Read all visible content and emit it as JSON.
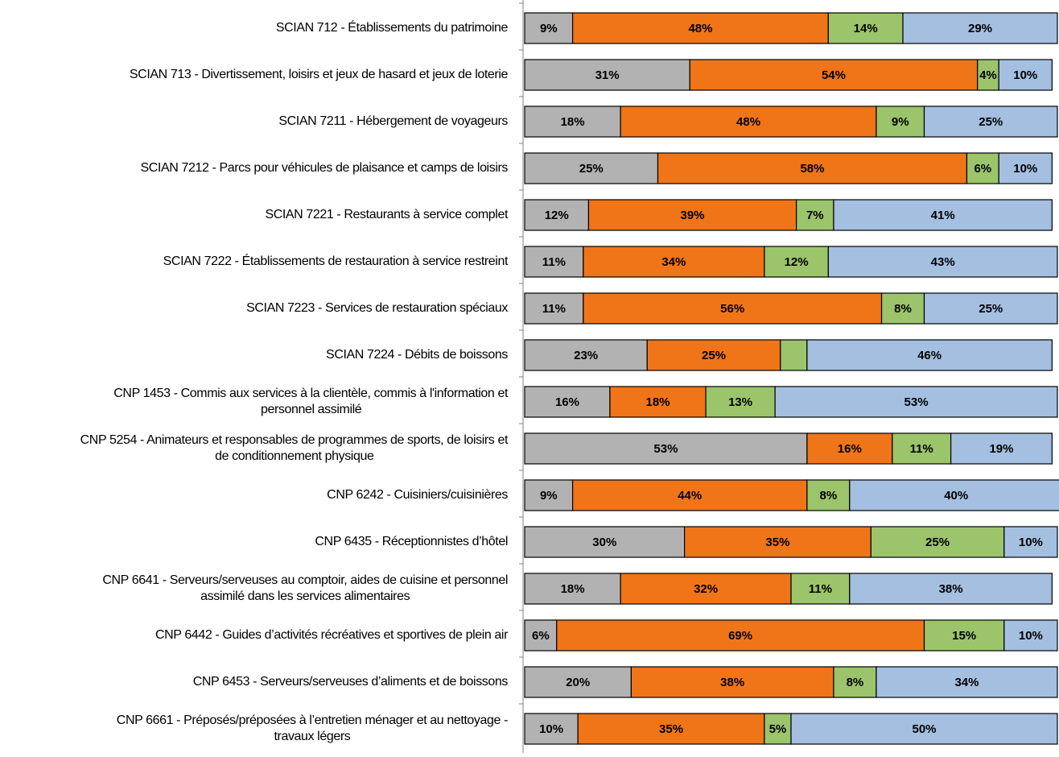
{
  "chart_data": {
    "type": "bar",
    "orientation": "horizontal",
    "stacked": true,
    "percent": true,
    "title": "",
    "xlabel": "",
    "ylabel": "",
    "xlim": [
      0,
      100
    ],
    "grid": false,
    "legend": "none",
    "categories": [
      [
        "SCIAN 712 - Établissements du patrimoine"
      ],
      [
        "SCIAN 713 - Divertissement, loisirs et jeux de hasard et jeux de loterie"
      ],
      [
        "SCIAN 7211 - Hébergement de voyageurs"
      ],
      [
        "SCIAN 7212 - Parcs pour véhicules de plaisance et camps de loisirs"
      ],
      [
        "SCIAN 7221 - Restaurants à service complet"
      ],
      [
        "SCIAN 7222 - Établissements de restauration à service restreint"
      ],
      [
        "SCIAN 7223  - Services de restauration spéciaux"
      ],
      [
        "SCIAN 7224 - Débits de boissons"
      ],
      [
        "CNP 1453 - Commis aux services à la clientèle, commis à l'information et",
        "personnel assimilé"
      ],
      [
        "CNP 5254 - Animateurs et responsables de programmes de sports, de loisirs et",
        "de conditionnement physique"
      ],
      [
        "CNP 6242 - Cuisiniers/cuisinières"
      ],
      [
        "CNP 6435 - Réceptionnistes d’hôtel"
      ],
      [
        "CNP 6641 - Serveurs/serveuses au comptoir, aides de cuisine et personnel",
        "assimilé dans les services alimentaires"
      ],
      [
        "CNP 6442 - Guides d’activités récréatives et sportives de plein air"
      ],
      [
        "CNP 6453 - Serveurs/serveuses d’aliments et de boissons"
      ],
      [
        "CNP 6661 - Préposés/préposées à l’entretien ménager et au nettoyage -",
        "travaux légers"
      ]
    ],
    "series": [
      {
        "color": "#b2b2b2",
        "values": [
          9,
          31,
          18,
          25,
          12,
          11,
          11,
          23,
          16,
          53,
          9,
          30,
          18,
          6,
          20,
          10
        ]
      },
      {
        "color": "#f07518",
        "values": [
          48,
          54,
          48,
          58,
          39,
          34,
          56,
          25,
          18,
          16,
          44,
          35,
          32,
          69,
          38,
          35
        ]
      },
      {
        "color": "#9bc46b",
        "values": [
          14,
          4,
          9,
          6,
          7,
          12,
          8,
          5,
          13,
          11,
          8,
          25,
          11,
          15,
          8,
          5
        ]
      },
      {
        "color": "#a4bfe0",
        "values": [
          29,
          10,
          25,
          10,
          41,
          43,
          25,
          46,
          53,
          19,
          40,
          10,
          38,
          10,
          34,
          50
        ]
      }
    ],
    "data_labels": [
      [
        "9%",
        "48%",
        "14%",
        "29%"
      ],
      [
        "31%",
        "54%",
        "4%",
        "10%"
      ],
      [
        "18%",
        "48%",
        "9%",
        "25%"
      ],
      [
        "25%",
        "58%",
        "6%",
        "10%"
      ],
      [
        "12%",
        "39%",
        "7%",
        "41%"
      ],
      [
        "11%",
        "34%",
        "12%",
        "43%"
      ],
      [
        "11%",
        "56%",
        "8%",
        "25%"
      ],
      [
        "23%",
        "25%",
        "",
        "46%"
      ],
      [
        "16%",
        "18%",
        "13%",
        "53%"
      ],
      [
        "53%",
        "16%",
        "11%",
        "19%"
      ],
      [
        "9%",
        "44%",
        "8%",
        "40%"
      ],
      [
        "30%",
        "35%",
        "25%",
        "10%"
      ],
      [
        "18%",
        "32%",
        "11%",
        "38%"
      ],
      [
        "6%",
        "69%",
        "15%",
        "10%"
      ],
      [
        "20%",
        "38%",
        "8%",
        "34%"
      ],
      [
        "10%",
        "35%",
        "5%",
        "50%"
      ]
    ]
  }
}
